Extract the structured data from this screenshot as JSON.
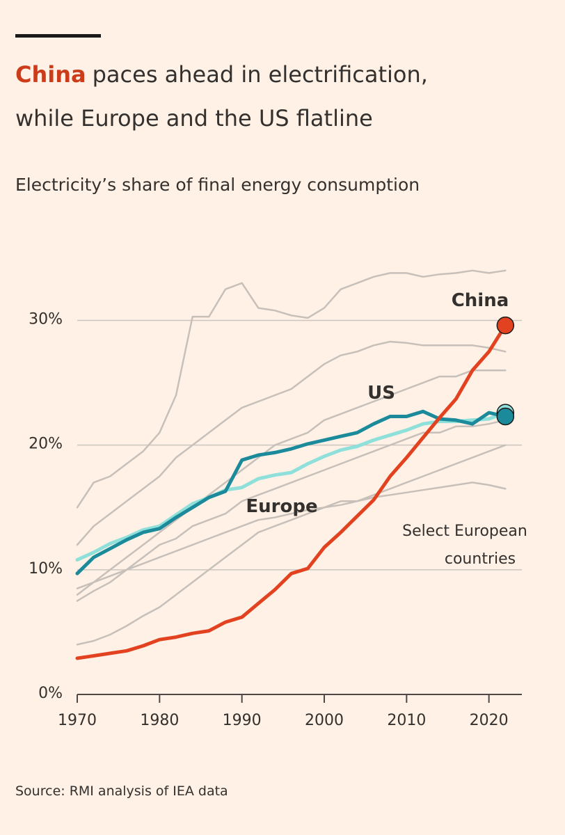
{
  "chart_data": {
    "type": "line",
    "title_highlight": "China",
    "title": [
      "paces ahead in electrification,",
      "while Europe and the US flatline"
    ],
    "subtitle": "Electricity’s share of final energy consumption",
    "source": "Source: RMI analysis of IEA data",
    "gray_label": [
      "Select European",
      "countries"
    ],
    "x": [
      1970,
      1972,
      1974,
      1976,
      1978,
      1980,
      1982,
      1984,
      1986,
      1988,
      1990,
      1992,
      1994,
      1996,
      1998,
      2000,
      2002,
      2004,
      2006,
      2008,
      2010,
      2012,
      2014,
      2016,
      2018,
      2020,
      2022
    ],
    "xlim": [
      1970,
      2024
    ],
    "xticks": [
      1970,
      1980,
      1990,
      2000,
      2010,
      2020
    ],
    "ylim": [
      0,
      36
    ],
    "yticks": [
      {
        "value": 0,
        "label": "0%"
      },
      {
        "value": 10,
        "label": "10%"
      },
      {
        "value": 20,
        "label": "20%"
      },
      {
        "value": 30,
        "label": "30%"
      }
    ],
    "grid": true,
    "gray_color": "#c7c0ba",
    "gray_series": [
      [
        15,
        17,
        17.5,
        18.5,
        19.5,
        21,
        24,
        30.3,
        30.3,
        32.5,
        33,
        31,
        30.8,
        30.4,
        30.2,
        31,
        32.5,
        33,
        33.5,
        33.8,
        33.8,
        33.5,
        33.7,
        33.8,
        34,
        33.8,
        34
      ],
      [
        12,
        13.5,
        14.5,
        15.5,
        16.5,
        17.5,
        19,
        20,
        21,
        22,
        23,
        23.5,
        24,
        24.5,
        25.5,
        26.5,
        27.2,
        27.5,
        28,
        28.3,
        28.2,
        28,
        28,
        28,
        28,
        27.8,
        27.5
      ],
      [
        8,
        9,
        10,
        11,
        12,
        13,
        14,
        15,
        16,
        17,
        18,
        19,
        20,
        20.5,
        21,
        22,
        22.5,
        23,
        23.5,
        24,
        24.5,
        25,
        25.5,
        25.5,
        26,
        26,
        26
      ],
      [
        7.5,
        8.3,
        9,
        10,
        11,
        12,
        12.5,
        13.5,
        14,
        14.5,
        15.5,
        16,
        16.5,
        17,
        17.5,
        18,
        18.5,
        19,
        19.5,
        20,
        20.5,
        21,
        21,
        21.5,
        21.5,
        21.7,
        22
      ],
      [
        4,
        4.3,
        4.8,
        5.5,
        6.3,
        7,
        8,
        9,
        10,
        11,
        12,
        13,
        13.5,
        14,
        14.5,
        15,
        15.5,
        15.5,
        16,
        16.5,
        17,
        17.5,
        18,
        18.5,
        19,
        19.5,
        20
      ],
      [
        8.5,
        9,
        9.5,
        10,
        10.5,
        11,
        11.5,
        12,
        12.5,
        13,
        13.5,
        14,
        14.2,
        14.5,
        14.8,
        15,
        15.2,
        15.5,
        15.8,
        16,
        16.2,
        16.4,
        16.6,
        16.8,
        17,
        16.8,
        16.5
      ]
    ],
    "series": [
      {
        "name": "Europe",
        "color": "#8fe0da",
        "values": [
          10.8,
          11.4,
          12.1,
          12.6,
          13.2,
          13.5,
          14.4,
          15.3,
          15.8,
          16.4,
          16.6,
          17.3,
          17.6,
          17.8,
          18.5,
          19.1,
          19.6,
          19.9,
          20.4,
          20.8,
          21.2,
          21.7,
          21.9,
          21.9,
          22.0,
          22.1,
          22.6
        ]
      },
      {
        "name": "US",
        "color": "#1b8a9b",
        "values": [
          9.7,
          11.0,
          11.7,
          12.4,
          13.0,
          13.3,
          14.2,
          15.0,
          15.8,
          16.3,
          18.8,
          19.2,
          19.4,
          19.7,
          20.1,
          20.4,
          20.7,
          21.0,
          21.7,
          22.3,
          22.3,
          22.7,
          22.1,
          22.0,
          21.7,
          22.6,
          22.3
        ]
      },
      {
        "name": "China",
        "color": "#e2421f",
        "values": [
          2.9,
          3.1,
          3.3,
          3.5,
          3.9,
          4.4,
          4.6,
          4.9,
          5.1,
          5.8,
          6.2,
          7.3,
          8.4,
          9.7,
          10.1,
          11.8,
          13.0,
          14.3,
          15.6,
          17.5,
          19.0,
          20.6,
          22.2,
          23.7,
          26.0,
          27.5,
          29.6
        ]
      }
    ]
  }
}
